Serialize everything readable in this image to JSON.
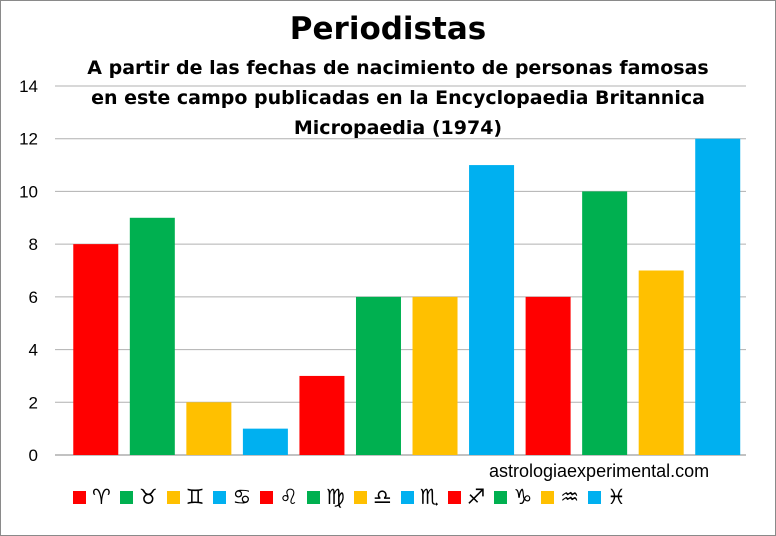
{
  "chart_data": {
    "type": "bar",
    "title": "Periodistas",
    "subtitle": [
      "A partir de las fechas de nacimiento de personas famosas",
      "en este campo publicadas  en la Encyclopaedia Britannica",
      "Micropaedia (1974)"
    ],
    "categories": [
      "♈",
      "♉",
      "♊",
      "♋",
      "♌",
      "♍",
      "♎",
      "♏",
      "♐",
      "♑",
      "♒",
      "♓"
    ],
    "values": [
      8,
      9,
      2,
      1,
      3,
      6,
      6,
      11,
      6,
      10,
      7,
      12
    ],
    "colors": [
      "#ff0000",
      "#00b050",
      "#ffc000",
      "#00b0f0",
      "#ff0000",
      "#00b050",
      "#ffc000",
      "#00b0f0",
      "#ff0000",
      "#00b050",
      "#ffc000",
      "#00b0f0"
    ],
    "ylim": [
      0,
      14
    ],
    "yticks": [
      0,
      2,
      4,
      6,
      8,
      10,
      12,
      14
    ],
    "grid": true,
    "legend": "bottom",
    "xlabel": "",
    "ylabel": ""
  },
  "watermark": "astrologiaexperimental.com"
}
